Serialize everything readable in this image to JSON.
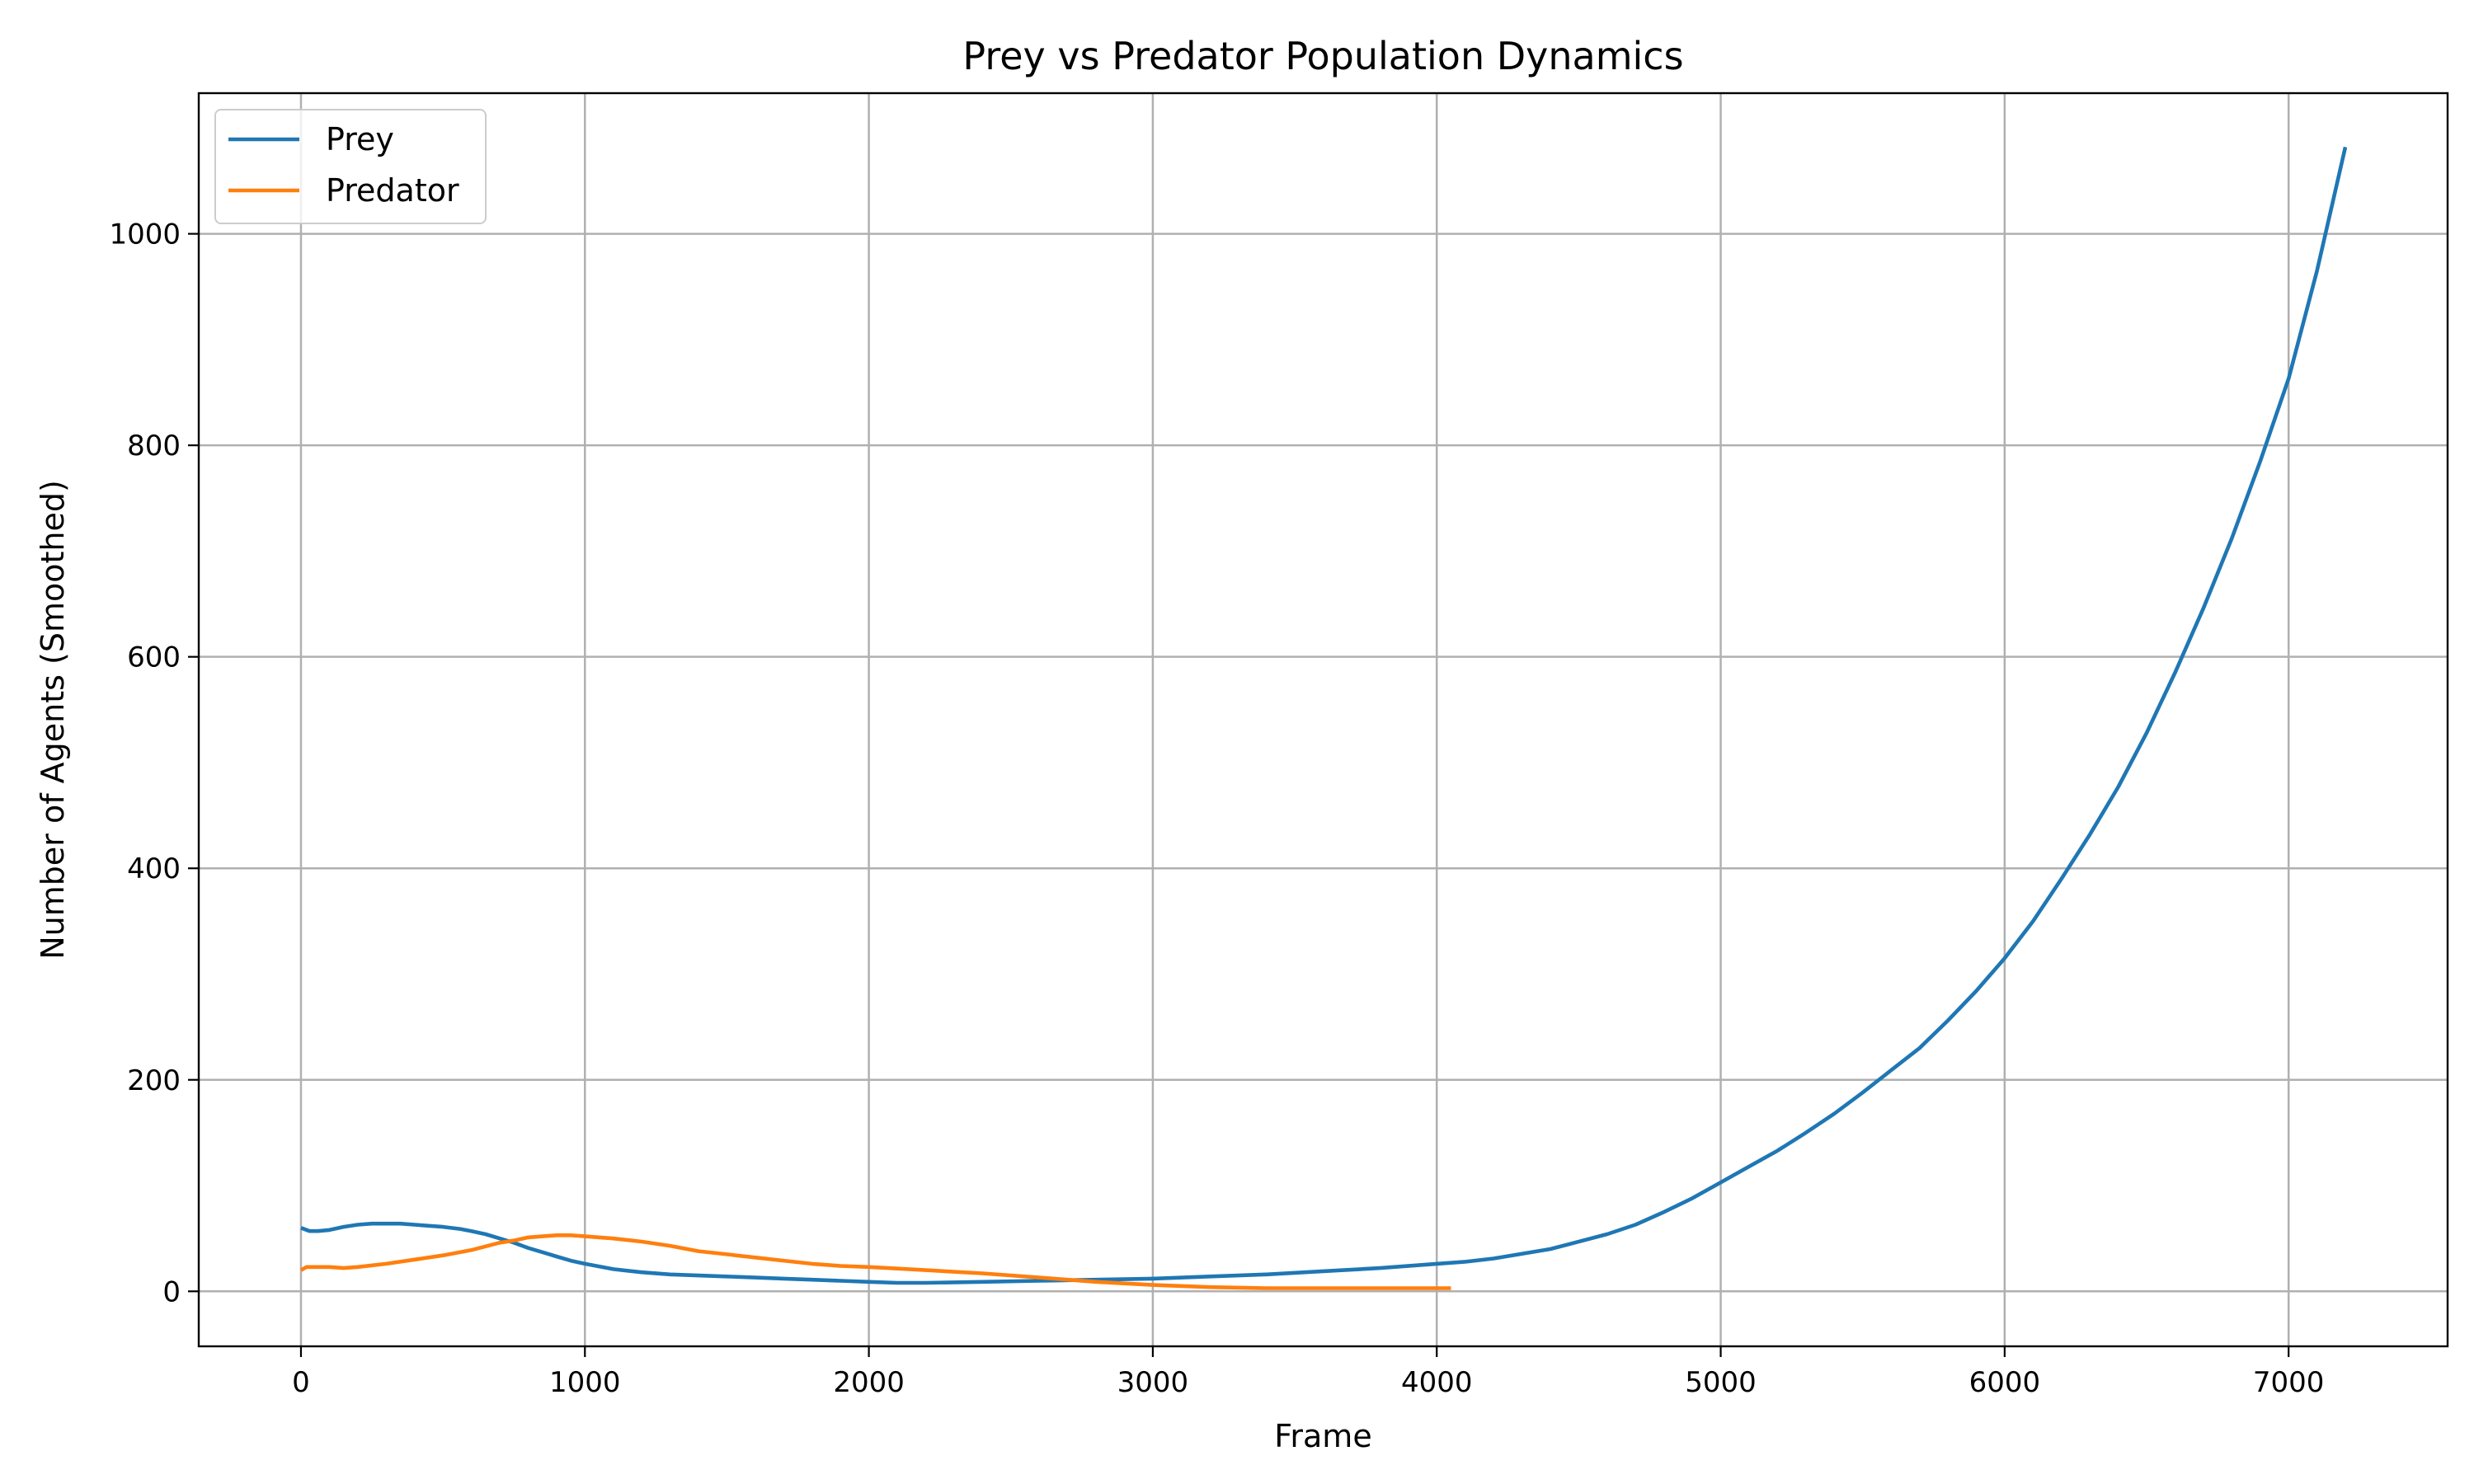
{
  "chart_data": {
    "type": "line",
    "title": "Prey vs Predator Population Dynamics",
    "xlabel": "Frame",
    "ylabel": "Number of Agents (Smoothed)",
    "xlim": [
      -360,
      7560
    ],
    "ylim": [
      -52,
      1133
    ],
    "x_ticks": [
      0,
      1000,
      2000,
      3000,
      4000,
      5000,
      6000,
      7000
    ],
    "y_ticks": [
      0,
      200,
      400,
      600,
      800,
      1000
    ],
    "grid": true,
    "legend_position": "top-left",
    "series": [
      {
        "name": "Prey",
        "color": "#1f77b4",
        "points": [
          [
            0,
            60
          ],
          [
            30,
            57
          ],
          [
            60,
            57
          ],
          [
            100,
            58
          ],
          [
            150,
            61
          ],
          [
            200,
            63
          ],
          [
            250,
            64
          ],
          [
            300,
            64
          ],
          [
            350,
            64
          ],
          [
            400,
            63
          ],
          [
            450,
            62
          ],
          [
            500,
            61
          ],
          [
            560,
            59
          ],
          [
            600,
            57
          ],
          [
            650,
            54
          ],
          [
            700,
            50
          ],
          [
            750,
            46
          ],
          [
            800,
            41
          ],
          [
            850,
            37
          ],
          [
            900,
            33
          ],
          [
            950,
            29
          ],
          [
            1000,
            26
          ],
          [
            1100,
            21
          ],
          [
            1200,
            18
          ],
          [
            1300,
            16
          ],
          [
            1400,
            15
          ],
          [
            1500,
            14
          ],
          [
            1600,
            13
          ],
          [
            1700,
            12
          ],
          [
            1800,
            11
          ],
          [
            1900,
            10
          ],
          [
            2000,
            9
          ],
          [
            2100,
            8
          ],
          [
            2200,
            8
          ],
          [
            2400,
            9
          ],
          [
            2600,
            10
          ],
          [
            2800,
            11
          ],
          [
            3000,
            12
          ],
          [
            3200,
            14
          ],
          [
            3400,
            16
          ],
          [
            3600,
            19
          ],
          [
            3800,
            22
          ],
          [
            4000,
            26
          ],
          [
            4100,
            28
          ],
          [
            4200,
            31
          ],
          [
            4400,
            40
          ],
          [
            4600,
            54
          ],
          [
            4700,
            63
          ],
          [
            4800,
            75
          ],
          [
            4900,
            88
          ],
          [
            5000,
            103
          ],
          [
            5100,
            118
          ],
          [
            5200,
            133
          ],
          [
            5300,
            150
          ],
          [
            5400,
            168
          ],
          [
            5500,
            188
          ],
          [
            5600,
            209
          ],
          [
            5700,
            230
          ],
          [
            5800,
            256
          ],
          [
            5900,
            284
          ],
          [
            6000,
            315
          ],
          [
            6100,
            350
          ],
          [
            6200,
            390
          ],
          [
            6300,
            432
          ],
          [
            6400,
            477
          ],
          [
            6500,
            528
          ],
          [
            6600,
            585
          ],
          [
            6700,
            646
          ],
          [
            6800,
            712
          ],
          [
            6900,
            785
          ],
          [
            7000,
            863
          ],
          [
            7100,
            965
          ],
          [
            7200,
            1082
          ]
        ]
      },
      {
        "name": "Predator",
        "color": "#ff7f0e",
        "points": [
          [
            0,
            20
          ],
          [
            20,
            23
          ],
          [
            50,
            23
          ],
          [
            100,
            23
          ],
          [
            150,
            22
          ],
          [
            200,
            23
          ],
          [
            300,
            26
          ],
          [
            400,
            30
          ],
          [
            500,
            34
          ],
          [
            600,
            39
          ],
          [
            700,
            46
          ],
          [
            750,
            48
          ],
          [
            800,
            51
          ],
          [
            850,
            52
          ],
          [
            900,
            53
          ],
          [
            950,
            53
          ],
          [
            1000,
            52
          ],
          [
            1100,
            50
          ],
          [
            1200,
            47
          ],
          [
            1300,
            43
          ],
          [
            1400,
            38
          ],
          [
            1500,
            35
          ],
          [
            1600,
            32
          ],
          [
            1700,
            29
          ],
          [
            1800,
            26
          ],
          [
            1900,
            24
          ],
          [
            2000,
            23
          ],
          [
            2200,
            20
          ],
          [
            2400,
            17
          ],
          [
            2600,
            13
          ],
          [
            2800,
            9
          ],
          [
            3000,
            6
          ],
          [
            3200,
            4
          ],
          [
            3400,
            3
          ],
          [
            3600,
            3
          ],
          [
            3800,
            3
          ],
          [
            4000,
            3
          ],
          [
            4050,
            3
          ]
        ]
      }
    ]
  }
}
